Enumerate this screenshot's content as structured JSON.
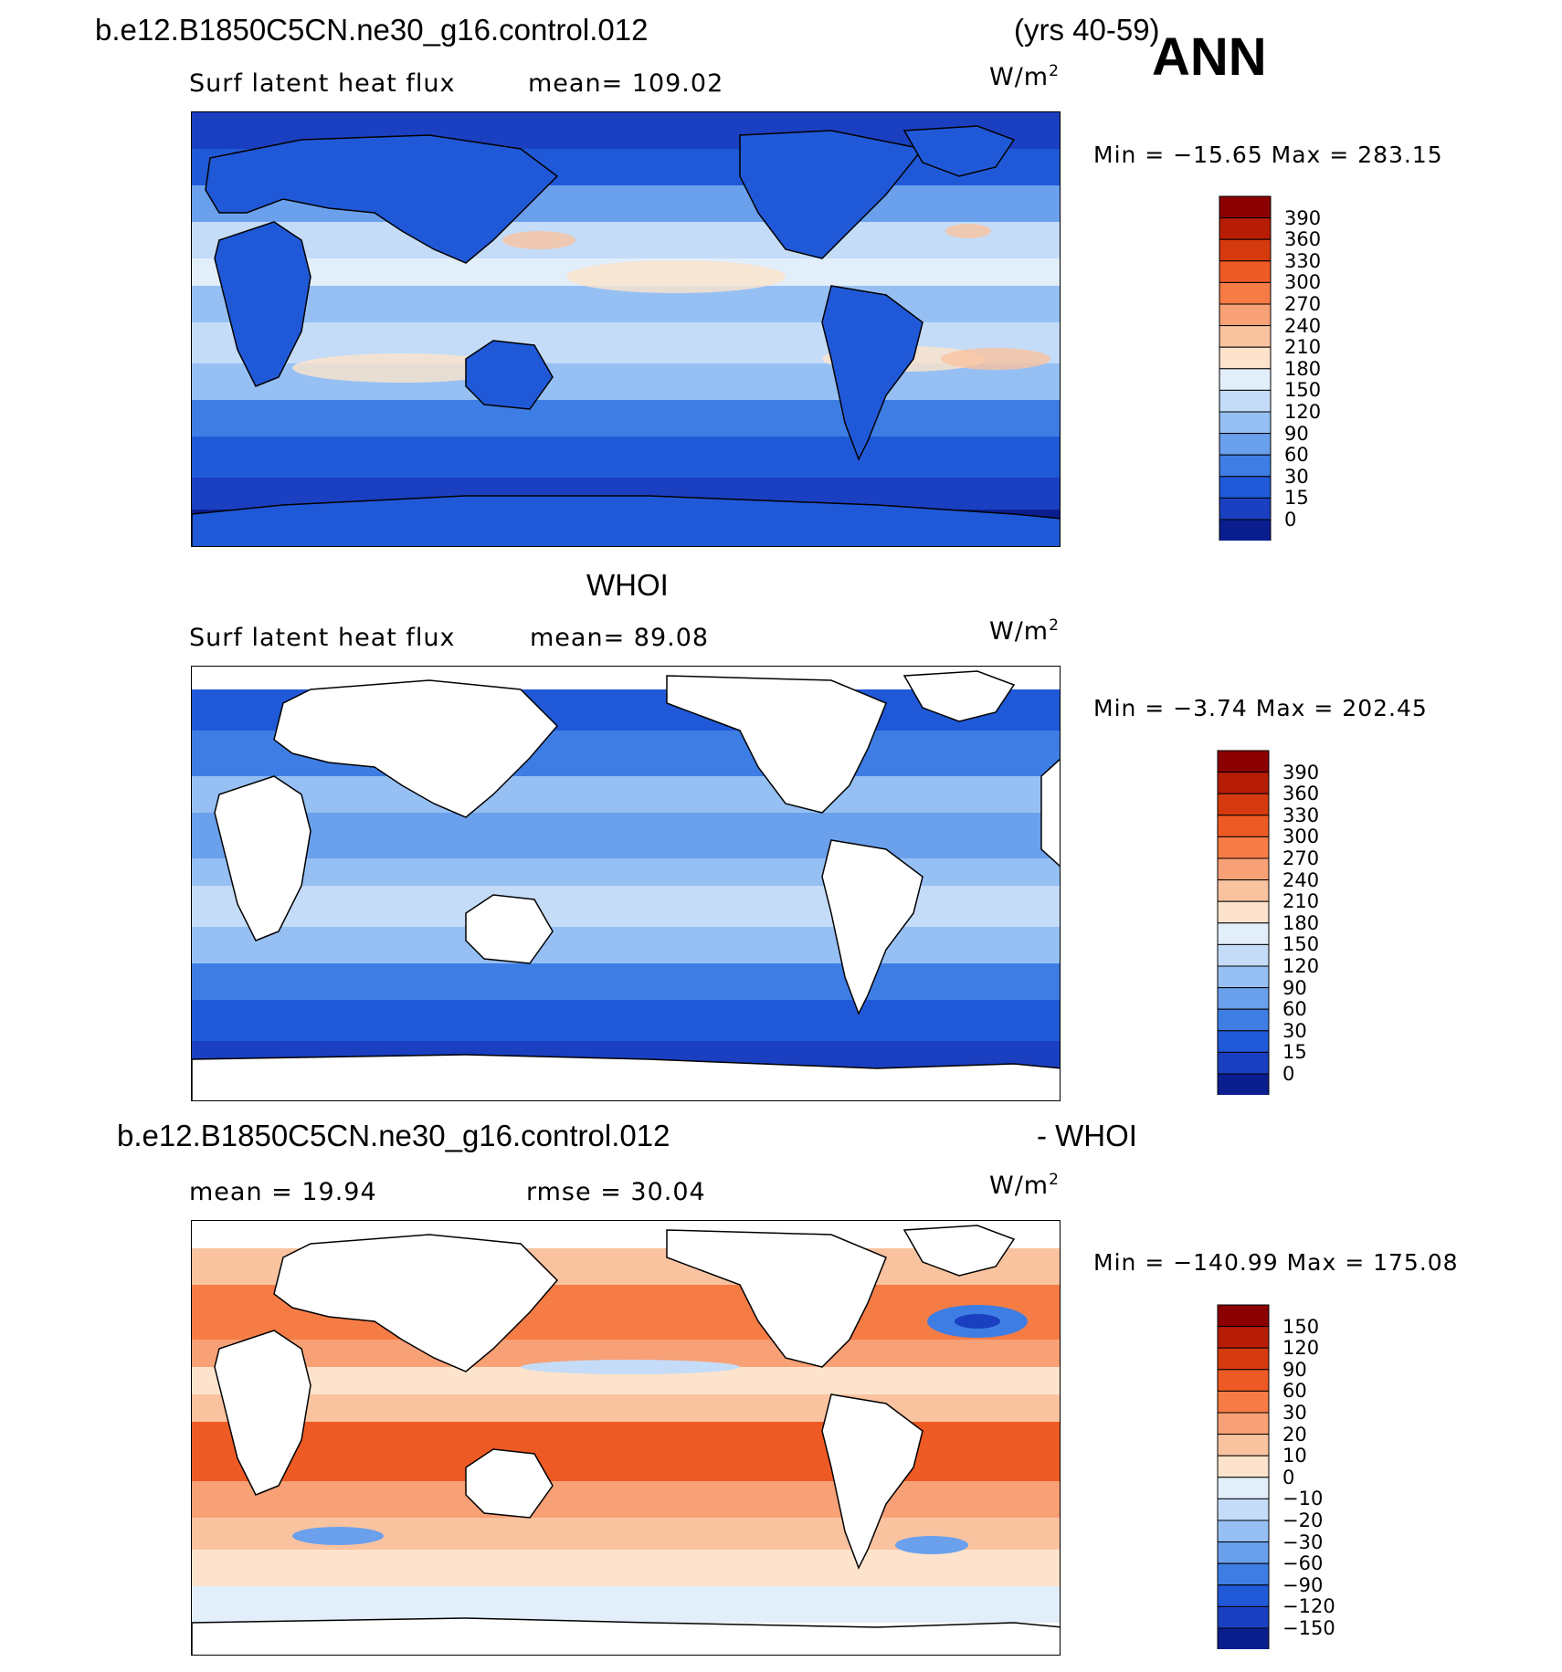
{
  "header": {
    "case_name": "b.e12.B1850C5CN.ne30_g16.control.012",
    "years": "(yrs 40-59)",
    "season": "ANN"
  },
  "panels": [
    {
      "id": "model",
      "variable_label": "Surf latent heat flux",
      "mean_label": "mean=  109.02",
      "units": "W/m",
      "units_sup": "2",
      "minmax_label": "Min  =  −15.65  Max  =  283.15",
      "colorbar": {
        "colors": [
          "#8b0000",
          "#b71c04",
          "#d43a0e",
          "#ee5a24",
          "#f67c46",
          "#f8a076",
          "#fac3a0",
          "#fde3cb",
          "#e2eefa",
          "#c4dcf8",
          "#96c0f4",
          "#6aa0ec",
          "#3e7ee4",
          "#2059d8",
          "#1a3fc0",
          "#0a1e90"
        ],
        "labels": [
          "390",
          "360",
          "330",
          "300",
          "270",
          "240",
          "210",
          "180",
          "150",
          "120",
          "90",
          "60",
          "30",
          "15",
          "0"
        ]
      }
    },
    {
      "id": "obs",
      "title": "WHOI",
      "variable_label": "Surf latent heat flux",
      "mean_label": "mean=   89.08",
      "units": "W/m",
      "units_sup": "2",
      "minmax_label": "Min  =   −3.74  Max  =  202.45",
      "colorbar": {
        "colors": [
          "#8b0000",
          "#b71c04",
          "#d43a0e",
          "#ee5a24",
          "#f67c46",
          "#f8a076",
          "#fac3a0",
          "#fde3cb",
          "#e2eefa",
          "#c4dcf8",
          "#96c0f4",
          "#6aa0ec",
          "#3e7ee4",
          "#2059d8",
          "#1a3fc0",
          "#0a1e90"
        ],
        "labels": [
          "390",
          "360",
          "330",
          "300",
          "270",
          "240",
          "210",
          "180",
          "150",
          "120",
          "90",
          "60",
          "30",
          "15",
          "0"
        ]
      }
    },
    {
      "id": "diff",
      "title_left": "b.e12.B1850C5CN.ne30_g16.control.012",
      "title_right": "- WHOI",
      "mean_label": "mean  =    19.94",
      "rmse_label": "rmse  =    30.04",
      "units": "W/m",
      "units_sup": "2",
      "minmax_label": "Min  =  −140.99  Max  =  175.08",
      "colorbar": {
        "colors": [
          "#8b0000",
          "#b71c04",
          "#d43a0e",
          "#ee5a24",
          "#f67c46",
          "#f8a076",
          "#fac3a0",
          "#fde3cb",
          "#e2eefa",
          "#c4dcf8",
          "#96c0f4",
          "#6aa0ec",
          "#3e7ee4",
          "#2059d8",
          "#1a3fc0",
          "#0a1e90"
        ],
        "labels": [
          "150",
          "120",
          "90",
          "60",
          "30",
          "20",
          "10",
          "0",
          "−10",
          "−20",
          "−30",
          "−60",
          "−90",
          "−120",
          "−150"
        ]
      }
    }
  ]
}
